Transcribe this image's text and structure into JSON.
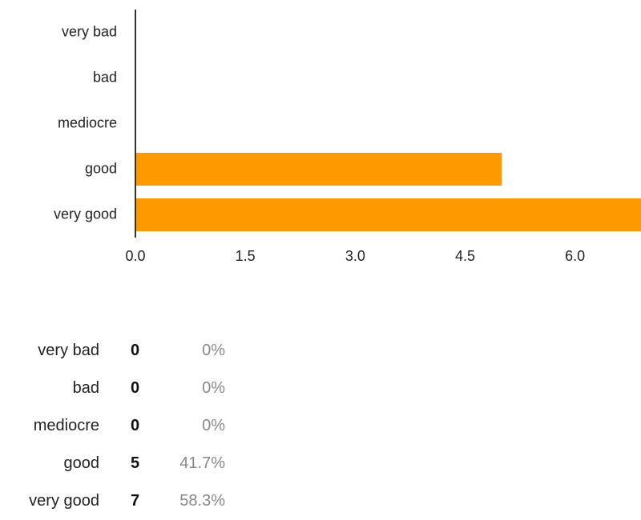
{
  "chart_data": {
    "type": "bar",
    "orientation": "horizontal",
    "categories": [
      "very bad",
      "bad",
      "mediocre",
      "good",
      "very good"
    ],
    "values": [
      0,
      0,
      0,
      5,
      7
    ],
    "xticks": [
      "0.0",
      "1.5",
      "3.0",
      "4.5",
      "6.0"
    ],
    "xlim": [
      0,
      6.9
    ],
    "bar_color": "#FF9900",
    "grid": false
  },
  "summary": {
    "rows": [
      {
        "label": "very bad",
        "count": "0",
        "percent": "0%"
      },
      {
        "label": "bad",
        "count": "0",
        "percent": "0%"
      },
      {
        "label": "mediocre",
        "count": "0",
        "percent": "0%"
      },
      {
        "label": "good",
        "count": "5",
        "percent": "41.7%"
      },
      {
        "label": "very good",
        "count": "7",
        "percent": "58.3%"
      }
    ]
  }
}
